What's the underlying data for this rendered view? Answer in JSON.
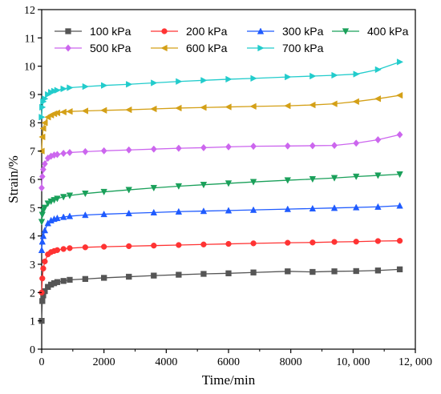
{
  "chart_data": {
    "type": "line",
    "xlabel": "Time/min",
    "ylabel": "Strain/%",
    "xlim": [
      0,
      12000
    ],
    "ylim": [
      0,
      12
    ],
    "xticks": [
      0,
      2000,
      4000,
      6000,
      8000,
      10000,
      12000
    ],
    "xtick_labels": [
      "0",
      "2000",
      "4000",
      "6000",
      "8000",
      "10, 000",
      "12, 000"
    ],
    "yticks": [
      0,
      1,
      2,
      3,
      4,
      5,
      6,
      7,
      8,
      9,
      10,
      11,
      12
    ],
    "ytick_labels": [
      "0",
      "1",
      "2",
      "3",
      "4",
      "5",
      "6",
      "7",
      "8",
      "9",
      "10",
      "11",
      "12"
    ],
    "grid": false,
    "legend_position": "top",
    "series": [
      {
        "name": "100 kPa",
        "color": "#555555",
        "marker": "square",
        "x": [
          0,
          20,
          50,
          100,
          200,
          300,
          400,
          500,
          700,
          900,
          1400,
          2000,
          2800,
          3600,
          4400,
          5200,
          6000,
          6800,
          7900,
          8700,
          9400,
          10100,
          10800,
          11500
        ],
        "y": [
          1.0,
          1.7,
          1.9,
          2.05,
          2.2,
          2.28,
          2.33,
          2.37,
          2.41,
          2.45,
          2.48,
          2.52,
          2.56,
          2.6,
          2.63,
          2.66,
          2.68,
          2.71,
          2.75,
          2.73,
          2.75,
          2.76,
          2.78,
          2.82
        ]
      },
      {
        "name": "200 kPa",
        "color": "#ff3333",
        "marker": "circle",
        "x": [
          0,
          20,
          50,
          100,
          200,
          300,
          400,
          500,
          700,
          900,
          1400,
          2000,
          2800,
          3600,
          4400,
          5200,
          6000,
          6800,
          7900,
          8700,
          9400,
          10100,
          10800,
          11500
        ],
        "y": [
          2.0,
          2.5,
          2.85,
          3.1,
          3.35,
          3.43,
          3.47,
          3.5,
          3.54,
          3.57,
          3.6,
          3.62,
          3.64,
          3.66,
          3.68,
          3.7,
          3.72,
          3.74,
          3.76,
          3.77,
          3.79,
          3.8,
          3.82,
          3.83
        ]
      },
      {
        "name": "300 kPa",
        "color": "#1f5bff",
        "marker": "triangle-up",
        "x": [
          0,
          20,
          50,
          100,
          200,
          300,
          400,
          500,
          700,
          900,
          1400,
          2000,
          2800,
          3600,
          4400,
          5200,
          6000,
          6800,
          7900,
          8700,
          9400,
          10100,
          10800,
          11500
        ],
        "y": [
          3.5,
          3.8,
          4.0,
          4.2,
          4.45,
          4.55,
          4.6,
          4.63,
          4.67,
          4.7,
          4.74,
          4.77,
          4.8,
          4.83,
          4.86,
          4.88,
          4.9,
          4.92,
          4.95,
          4.97,
          4.99,
          5.01,
          5.03,
          5.07
        ]
      },
      {
        "name": "400 kPa",
        "color": "#1aa05a",
        "marker": "triangle-down",
        "x": [
          0,
          20,
          50,
          100,
          200,
          300,
          400,
          500,
          700,
          900,
          1400,
          2000,
          2800,
          3600,
          4400,
          5200,
          6000,
          6800,
          7900,
          8700,
          9400,
          10100,
          10800,
          11500
        ],
        "y": [
          4.5,
          4.75,
          4.9,
          5.0,
          5.15,
          5.22,
          5.27,
          5.32,
          5.38,
          5.43,
          5.5,
          5.56,
          5.63,
          5.7,
          5.76,
          5.81,
          5.86,
          5.91,
          5.97,
          6.01,
          6.05,
          6.1,
          6.14,
          6.18
        ]
      },
      {
        "name": "500 kPa",
        "color": "#cc66ee",
        "marker": "diamond",
        "x": [
          0,
          20,
          50,
          100,
          200,
          300,
          400,
          500,
          700,
          900,
          1400,
          2000,
          2800,
          3600,
          4400,
          5200,
          6000,
          6800,
          7900,
          8700,
          9400,
          10100,
          10800,
          11500
        ],
        "y": [
          5.7,
          6.1,
          6.35,
          6.55,
          6.75,
          6.82,
          6.86,
          6.88,
          6.92,
          6.95,
          6.98,
          7.01,
          7.04,
          7.07,
          7.1,
          7.12,
          7.15,
          7.17,
          7.18,
          7.19,
          7.2,
          7.28,
          7.4,
          7.58
        ]
      },
      {
        "name": "600 kPa",
        "color": "#d4a017",
        "marker": "triangle-left",
        "x": [
          0,
          20,
          50,
          100,
          200,
          300,
          400,
          500,
          700,
          900,
          1400,
          2000,
          2800,
          3600,
          4400,
          5200,
          6000,
          6800,
          7900,
          8700,
          9400,
          10100,
          10800,
          11500
        ],
        "y": [
          7.0,
          7.5,
          7.8,
          8.0,
          8.2,
          8.27,
          8.32,
          8.35,
          8.38,
          8.4,
          8.42,
          8.44,
          8.46,
          8.49,
          8.52,
          8.54,
          8.56,
          8.58,
          8.6,
          8.63,
          8.67,
          8.75,
          8.85,
          8.97
        ]
      },
      {
        "name": "700 kPa",
        "color": "#22cccc",
        "marker": "triangle-right",
        "x": [
          0,
          20,
          50,
          100,
          200,
          300,
          400,
          500,
          700,
          900,
          1400,
          2000,
          2800,
          3600,
          4400,
          5200,
          6000,
          6800,
          7900,
          8700,
          9400,
          10100,
          10800,
          11500
        ],
        "y": [
          8.2,
          8.55,
          8.75,
          8.85,
          9.0,
          9.08,
          9.12,
          9.15,
          9.2,
          9.24,
          9.28,
          9.32,
          9.36,
          9.41,
          9.46,
          9.5,
          9.54,
          9.57,
          9.62,
          9.65,
          9.68,
          9.72,
          9.88,
          10.15
        ]
      }
    ]
  }
}
